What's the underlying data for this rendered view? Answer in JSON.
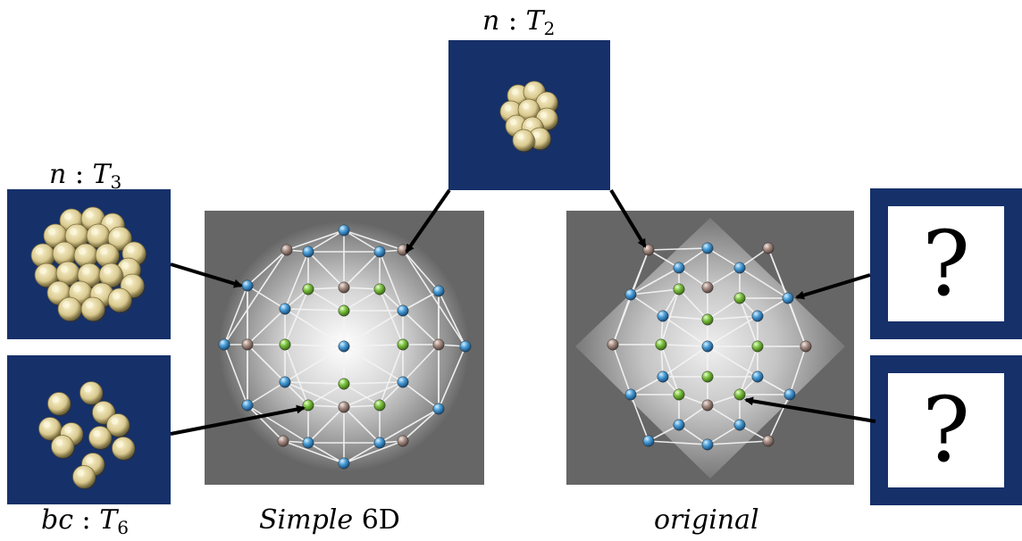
{
  "top_label": {
    "var": "n",
    "sep": " : ",
    "sym": "T",
    "sub": "2"
  },
  "left_top_label": {
    "var": "n",
    "sep": " : ",
    "sym": "T",
    "sub": "3"
  },
  "left_bottom_label": {
    "var": "bc",
    "sep": " : ",
    "sym": "T",
    "sub": "6"
  },
  "center_caption": {
    "text": "Simple ",
    "upright": "6D"
  },
  "right_caption": {
    "text": "original"
  },
  "question_boxes": [
    {
      "mark": "?"
    },
    {
      "mark": "?"
    }
  ],
  "colors": {
    "tile_bg": "#16306a",
    "panel_bg": "#666666",
    "blue_node": "#4a9ed8",
    "brown_node": "#a88f86",
    "green_node": "#7cc240",
    "cluster": "#e3d7a4"
  }
}
